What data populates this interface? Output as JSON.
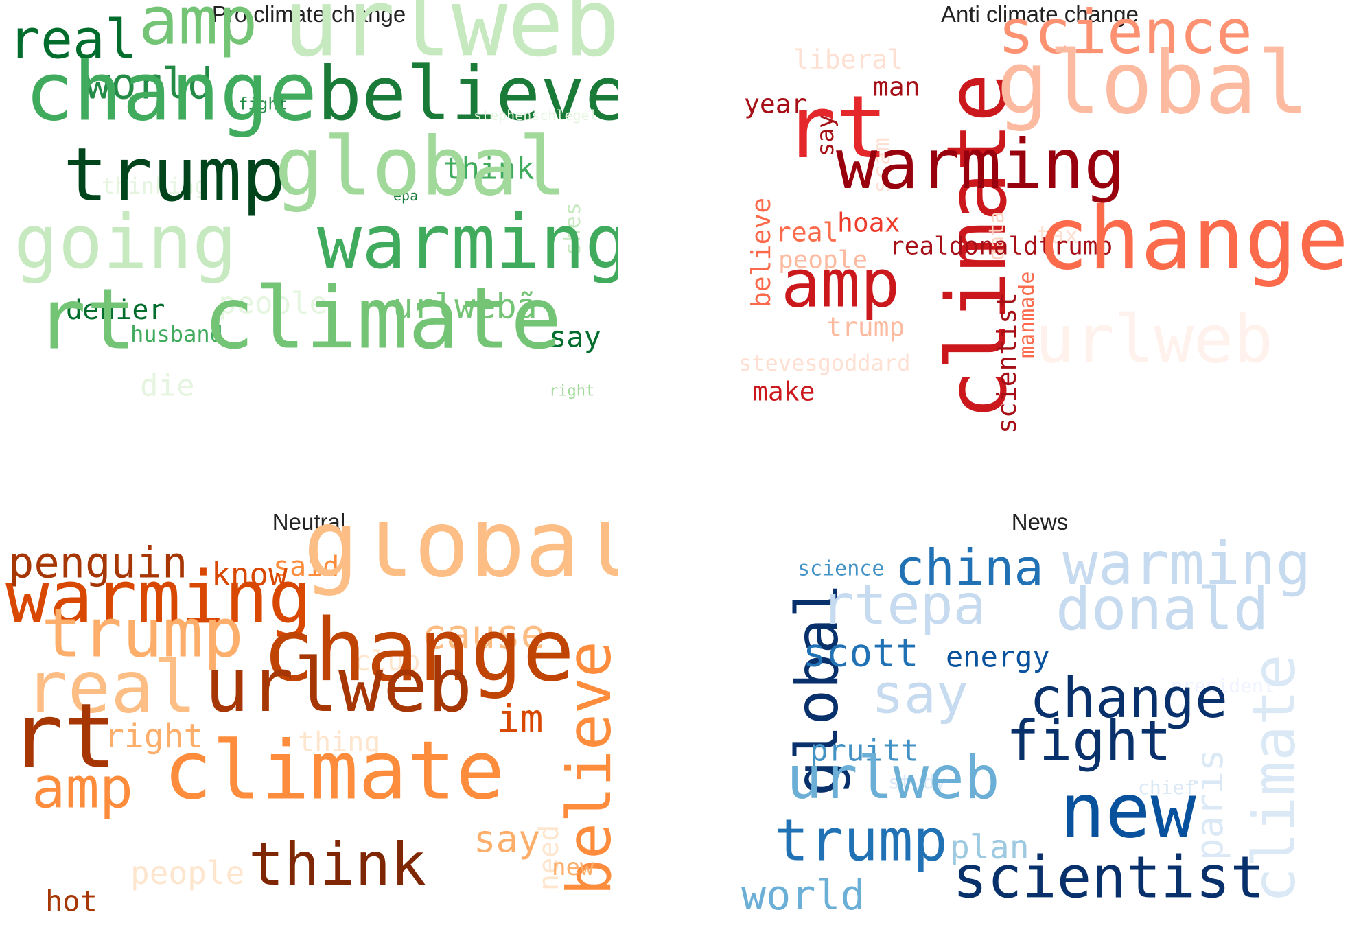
{
  "panels": [
    {
      "title": "Pro climate change",
      "colormap": "Greens",
      "words": [
        {
          "text": "urlweb",
          "color": "#c7e9c0"
        },
        {
          "text": "amp",
          "color": "#74c476"
        },
        {
          "text": "real",
          "color": "#006d2c"
        },
        {
          "text": "world",
          "color": "#238b45"
        },
        {
          "text": "fight",
          "color": "#238b45"
        },
        {
          "text": "change",
          "color": "#41ab5d"
        },
        {
          "text": "believe",
          "color": "#1a7a38"
        },
        {
          "text": "stephenschlegel",
          "color": "#e5f5e0"
        },
        {
          "text": "thinking",
          "color": "#e5f5e0"
        },
        {
          "text": "epa",
          "color": "#1a7a38"
        },
        {
          "text": "think",
          "color": "#41ab5d"
        },
        {
          "text": "trump",
          "color": "#00441b"
        },
        {
          "text": "global",
          "color": "#a1d99b"
        },
        {
          "text": "shes",
          "color": "#c7e9c0"
        },
        {
          "text": "going",
          "color": "#c7e9c0"
        },
        {
          "text": "warming",
          "color": "#41ab5d"
        },
        {
          "text": "denier",
          "color": "#006d2c"
        },
        {
          "text": "people",
          "color": "#e5f5e0"
        },
        {
          "text": "urlwebã",
          "color": "#74c476"
        },
        {
          "text": "husband",
          "color": "#41ab5d"
        },
        {
          "text": "say",
          "color": "#006d2c"
        },
        {
          "text": "rt",
          "color": "#74c476"
        },
        {
          "text": "climate",
          "color": "#74c476"
        },
        {
          "text": "die",
          "color": "#e5f5e0"
        },
        {
          "text": "right",
          "color": "#a1d99b"
        }
      ]
    },
    {
      "title": "Anti climate change",
      "colormap": "Reds",
      "words": [
        {
          "text": "liberal",
          "color": "#fee0d2"
        },
        {
          "text": "science",
          "color": "#fc9272"
        },
        {
          "text": "climate",
          "color": "#cb181d"
        },
        {
          "text": "man",
          "color": "#a50f15"
        },
        {
          "text": "year",
          "color": "#a50f15"
        },
        {
          "text": "say",
          "color": "#a50f15"
        },
        {
          "text": "scam",
          "color": "#fee0d2"
        },
        {
          "text": "global",
          "color": "#fcbba1"
        },
        {
          "text": "rt",
          "color": "#e3272b"
        },
        {
          "text": "warming",
          "color": "#99000d"
        },
        {
          "text": "data",
          "color": "#fcd3c1"
        },
        {
          "text": "believe",
          "color": "#fb6a4a"
        },
        {
          "text": "hoax",
          "color": "#ef3b2c"
        },
        {
          "text": "tax",
          "color": "#fee0d2"
        },
        {
          "text": "real",
          "color": "#fb6a4a"
        },
        {
          "text": "realdonaldtrump",
          "color": "#a50f15"
        },
        {
          "text": "people",
          "color": "#fcbba1"
        },
        {
          "text": "change",
          "color": "#fb6a4a"
        },
        {
          "text": "amp",
          "color": "#cb181d"
        },
        {
          "text": "scientist",
          "color": "#a50f15"
        },
        {
          "text": "manmade",
          "color": "#fb6a4a"
        },
        {
          "text": "trump",
          "color": "#fcbba1"
        },
        {
          "text": "stevesgoddard",
          "color": "#fee0d2"
        },
        {
          "text": "urlweb",
          "color": "#fff1ec"
        },
        {
          "text": "make",
          "color": "#cb181d"
        }
      ]
    },
    {
      "title": "Neutral",
      "colormap": "Oranges",
      "words": [
        {
          "text": "penguin",
          "color": "#a63603"
        },
        {
          "text": "said",
          "color": "#fd8d3c"
        },
        {
          "text": "know",
          "color": "#d94801"
        },
        {
          "text": "global",
          "color": "#fdbe85"
        },
        {
          "text": "warming",
          "color": "#d94801"
        },
        {
          "text": "cause",
          "color": "#fdbe85"
        },
        {
          "text": "trump",
          "color": "#fdae6b"
        },
        {
          "text": "club",
          "color": "#fee6ce"
        },
        {
          "text": "believe",
          "color": "#fd8d3c"
        },
        {
          "text": "change",
          "color": "#c04404"
        },
        {
          "text": "real",
          "color": "#fdbe85"
        },
        {
          "text": "urlweb",
          "color": "#a63603"
        },
        {
          "text": "im",
          "color": "#d94801"
        },
        {
          "text": "right",
          "color": "#fdae6b"
        },
        {
          "text": "thing",
          "color": "#fee6ce"
        },
        {
          "text": "rt",
          "color": "#a63603"
        },
        {
          "text": "need",
          "color": "#fee6ce"
        },
        {
          "text": "amp",
          "color": "#fd8d3c"
        },
        {
          "text": "climate",
          "color": "#fd8d3c"
        },
        {
          "text": "say",
          "color": "#fdae6b"
        },
        {
          "text": "new",
          "color": "#fdae6b"
        },
        {
          "text": "people",
          "color": "#fee6ce"
        },
        {
          "text": "think",
          "color": "#7f2704"
        },
        {
          "text": "hot",
          "color": "#a63603"
        }
      ]
    },
    {
      "title": "News",
      "colormap": "Blues",
      "words": [
        {
          "text": "science",
          "color": "#4292c6"
        },
        {
          "text": "china",
          "color": "#2171b5"
        },
        {
          "text": "warming",
          "color": "#c6dbef"
        },
        {
          "text": "global",
          "color": "#08306b"
        },
        {
          "text": "rtepa",
          "color": "#c6dbef"
        },
        {
          "text": "donald",
          "color": "#c6dbef"
        },
        {
          "text": "scott",
          "color": "#2171b5"
        },
        {
          "text": "energy",
          "color": "#08519c"
        },
        {
          "text": "president",
          "color": "#eff3ff"
        },
        {
          "text": "say",
          "color": "#c6dbef"
        },
        {
          "text": "change",
          "color": "#08306b"
        },
        {
          "text": "climate",
          "color": "#dbe9f6"
        },
        {
          "text": "pruitt",
          "color": "#4292c6"
        },
        {
          "text": "fight",
          "color": "#08306b"
        },
        {
          "text": "study",
          "color": "#dbe9f6"
        },
        {
          "text": "paris",
          "color": "#dbe9f6"
        },
        {
          "text": "chief",
          "color": "#dbe9f6"
        },
        {
          "text": "urlweb",
          "color": "#6baed6"
        },
        {
          "text": "new",
          "color": "#08519c"
        },
        {
          "text": "plan",
          "color": "#9ecae1"
        },
        {
          "text": "trump",
          "color": "#2171b5"
        },
        {
          "text": "scientist",
          "color": "#08306b"
        },
        {
          "text": "world",
          "color": "#6baed6"
        }
      ]
    }
  ]
}
